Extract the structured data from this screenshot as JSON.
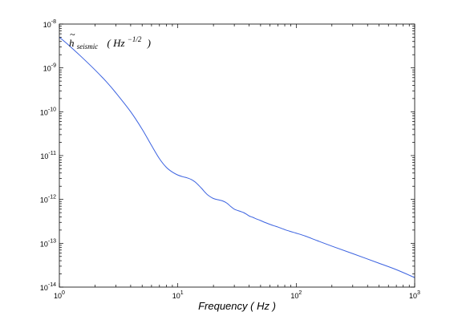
{
  "chart_data": {
    "type": "line",
    "title": "",
    "xlabel": "Frequency ( Hz )",
    "ylabel": "",
    "xscale": "log",
    "yscale": "log",
    "xlim": [
      1,
      1000
    ],
    "ylim": [
      1e-14,
      1e-08
    ],
    "grid": false,
    "colors": {
      "series": "#3b62e0",
      "frame": "#000000"
    },
    "x_ticks": [
      {
        "base": "10",
        "exp": "0"
      },
      {
        "base": "10",
        "exp": "1"
      },
      {
        "base": "10",
        "exp": "2"
      },
      {
        "base": "10",
        "exp": "3"
      }
    ],
    "y_ticks": [
      {
        "base": "10",
        "exp": "-14"
      },
      {
        "base": "10",
        "exp": "-13"
      },
      {
        "base": "10",
        "exp": "-12"
      },
      {
        "base": "10",
        "exp": "-11"
      },
      {
        "base": "10",
        "exp": "-10"
      },
      {
        "base": "10",
        "exp": "-9"
      },
      {
        "base": "10",
        "exp": "-8"
      }
    ],
    "annotation": {
      "symbol": "h",
      "accent": "~",
      "subscript": "seismic",
      "unit_open": "(",
      "unit_base": "Hz",
      "unit_exp": "−1/2",
      "unit_close": ")"
    },
    "series": [
      {
        "x": [
          1.0,
          1.2,
          1.5,
          2.0,
          2.5,
          3.0,
          4.0,
          5.0,
          6.0,
          7.0,
          8.0,
          9.0,
          10.0,
          11.0,
          12.0,
          13.0,
          14.0,
          15.0,
          16.0,
          17.0,
          18.0,
          20.0,
          22.0,
          24.0,
          26.0,
          28.0,
          30.0,
          32.0,
          34.0,
          36.0,
          38.0,
          40.0,
          43.0,
          46.0,
          50.0,
          55.0,
          60.0,
          65.0,
          70.0,
          80.0,
          90.0,
          100.0,
          120.0,
          150.0,
          200.0,
          300.0,
          500.0,
          700.0,
          1000.0
        ],
        "y": [
          5e-09,
          3.3e-09,
          1.9e-09,
          9e-10,
          4.8e-10,
          2.7e-10,
          1e-10,
          4e-11,
          1.7e-11,
          8.5e-12,
          5.4e-12,
          4.2e-12,
          3.6e-12,
          3.3e-12,
          3.1e-12,
          2.85e-12,
          2.5e-12,
          2.1e-12,
          1.75e-12,
          1.45e-12,
          1.25e-12,
          1.05e-12,
          9.8e-13,
          9.2e-13,
          8.2e-13,
          6.9e-13,
          6e-13,
          5.6e-13,
          5.3e-13,
          5e-13,
          4.6e-13,
          4.2e-13,
          3.9e-13,
          3.6e-13,
          3.3e-13,
          2.95e-13,
          2.7e-13,
          2.5e-13,
          2.35e-13,
          2.05e-13,
          1.85e-13,
          1.7e-13,
          1.45e-13,
          1.15e-13,
          8.6e-14,
          5.8e-14,
          3.5e-14,
          2.5e-14,
          1.65e-14
        ]
      }
    ]
  }
}
